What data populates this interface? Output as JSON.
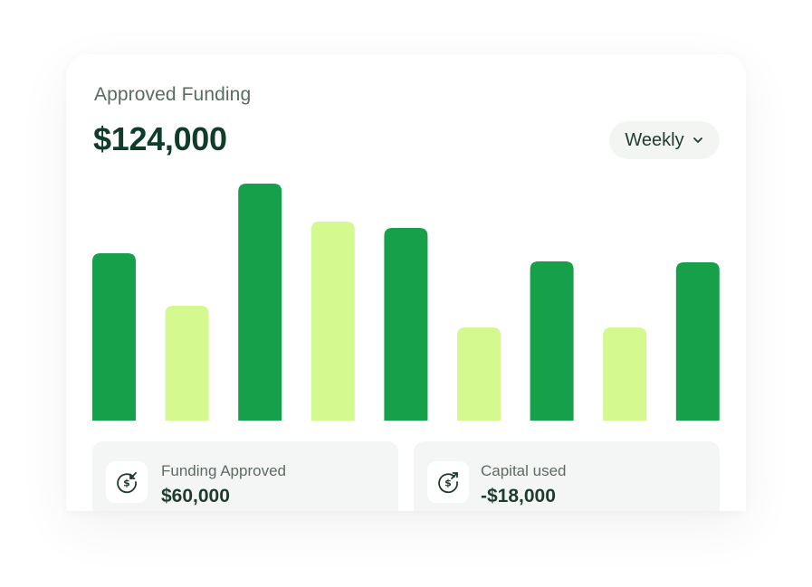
{
  "card": {
    "title": "Approved Funding",
    "amount": "$124,000"
  },
  "period_select": {
    "selected": "Weekly",
    "icon": "chevron-down-icon"
  },
  "colors": {
    "dark_bar": "#16a04a",
    "light_bar": "#d3f98f",
    "heading_text": "#0f3d2a"
  },
  "chart_data": {
    "type": "bar",
    "values": [
      185,
      127,
      262,
      220,
      213,
      103,
      176,
      103,
      175
    ],
    "bar_styles": [
      "dark",
      "light",
      "dark",
      "light",
      "dark",
      "light",
      "dark",
      "light",
      "dark"
    ],
    "ylim": [
      0,
      262
    ]
  },
  "stats": [
    {
      "label": "Funding Approved",
      "value": "$60,000",
      "icon": "dollar-arrow-in-icon"
    },
    {
      "label": "Capital used",
      "value": "-$18,000",
      "icon": "dollar-arrow-out-icon"
    }
  ]
}
